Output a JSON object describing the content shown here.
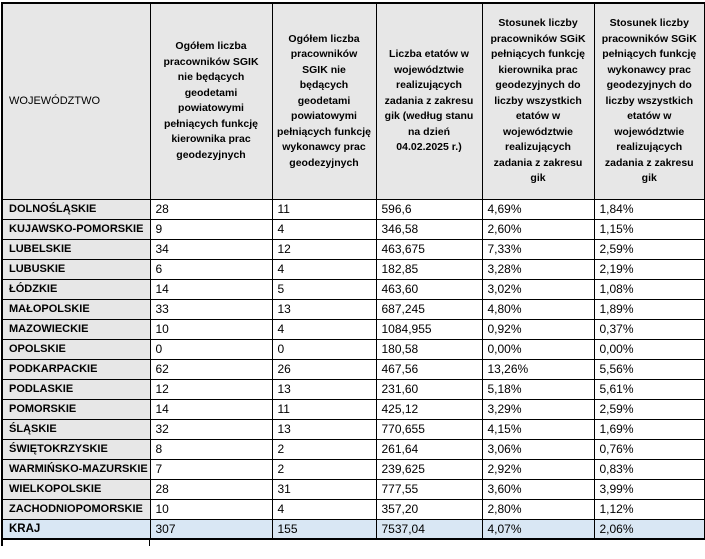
{
  "colors": {
    "header_bg": "#e7e7e7",
    "row_label_bg": "#e7e7e7",
    "total_row_bg": "#d9e7f4",
    "border": "#000000",
    "text": "#000000"
  },
  "table": {
    "columns": [
      {
        "label": "WOJEWÓDZTWO"
      },
      {
        "label": "Ogółem liczba pracowników SGIK nie będących geodetami powiatowymi pełniących funkcję kierownika prac geodezyjnych"
      },
      {
        "label": "Ogółem liczba pracowników SGIK nie będących geodetami powiatowymi pełniących funkcję wykonawcy prac geodezyjnych"
      },
      {
        "label": "Liczba etatów w województwie realizujących zadania z zakresu gik (według stanu na dzień 04.02.2025 r.)"
      },
      {
        "label": "Stosunek liczby pracowników SGiK pełniących funkcję kierownika prac geodezyjnych do liczby wszystkich etatów w województwie realizujących zadania z zakresu gik"
      },
      {
        "label": "Stosunek liczby pracowników SGiK pełniących funkcję wykonawcy prac geodezyjnych do liczby wszystkich etatów w województwie realizujących zadania z zakresu gik"
      }
    ],
    "rows": [
      {
        "name": "DOLNOŚLĄSKIE",
        "values": [
          "28",
          "11",
          "596,6",
          "4,69%",
          "1,84%"
        ]
      },
      {
        "name": "KUJAWSKO-POMORSKIE",
        "values": [
          "9",
          "4",
          "346,58",
          "2,60%",
          "1,15%"
        ]
      },
      {
        "name": "LUBELSKIE",
        "values": [
          "34",
          "12",
          "463,675",
          "7,33%",
          "2,59%"
        ]
      },
      {
        "name": "LUBUSKIE",
        "values": [
          "6",
          "4",
          "182,85",
          "3,28%",
          "2,19%"
        ]
      },
      {
        "name": "ŁÓDZKIE",
        "values": [
          "14",
          "5",
          "463,60",
          "3,02%",
          "1,08%"
        ]
      },
      {
        "name": "MAŁOPOLSKIE",
        "values": [
          "33",
          "13",
          "687,245",
          "4,80%",
          "1,89%"
        ]
      },
      {
        "name": "MAZOWIECKIE",
        "values": [
          "10",
          "4",
          "1084,955",
          "0,92%",
          "0,37%"
        ]
      },
      {
        "name": "OPOLSKIE",
        "values": [
          "0",
          "0",
          "180,58",
          "0,00%",
          "0,00%"
        ]
      },
      {
        "name": "PODKARPACKIE",
        "values": [
          "62",
          "26",
          "467,56",
          "13,26%",
          "5,56%"
        ]
      },
      {
        "name": "PODLASKIE",
        "values": [
          "12",
          "13",
          "231,60",
          "5,18%",
          "5,61%"
        ]
      },
      {
        "name": "POMORSKIE",
        "values": [
          "14",
          "11",
          "425,12",
          "3,29%",
          "2,59%"
        ]
      },
      {
        "name": "ŚLĄSKIE",
        "values": [
          "32",
          "13",
          "770,655",
          "4,15%",
          "1,69%"
        ]
      },
      {
        "name": "ŚWIĘTOKRZYSKIE",
        "values": [
          "8",
          "2",
          "261,64",
          "3,06%",
          "0,76%"
        ]
      },
      {
        "name": "WARMIŃSKO-MAZURSKIE",
        "values": [
          "7",
          "2",
          "239,625",
          "2,92%",
          "0,83%"
        ]
      },
      {
        "name": "WIELKOPOLSKIE",
        "values": [
          "28",
          "31",
          "777,55",
          "3,60%",
          "3,99%"
        ]
      },
      {
        "name": "ZACHODNIOPOMORSKIE",
        "values": [
          "10",
          "4",
          "357,20",
          "2,80%",
          "1,12%"
        ]
      }
    ],
    "total_row": {
      "name": "KRAJ",
      "values": [
        "307",
        "155",
        "7537,04",
        "4,07%",
        "2,06%"
      ]
    }
  }
}
